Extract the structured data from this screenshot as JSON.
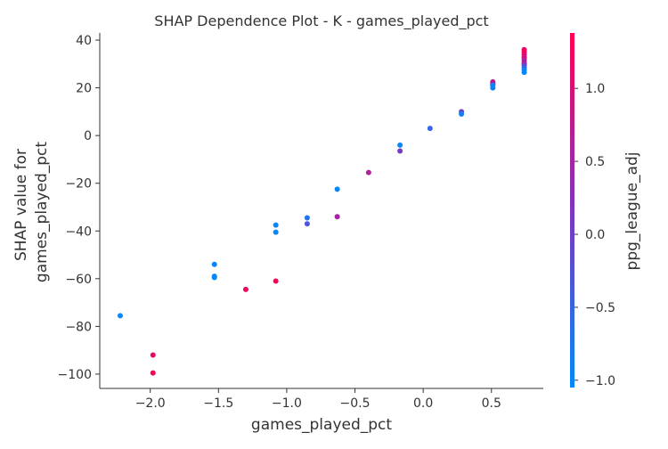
{
  "chart_data": {
    "type": "scatter",
    "title": "SHAP Dependence Plot - K - games_played_pct",
    "xlabel": "games_played_pct",
    "ylabel_line1": "SHAP value for",
    "ylabel_line2": "games_played_pct",
    "xlim": [
      -2.37,
      0.88
    ],
    "ylim": [
      -106,
      43
    ],
    "xticks": [
      -2.0,
      -1.5,
      -1.0,
      -0.5,
      0.0,
      0.5
    ],
    "xtick_labels": [
      "−2.0",
      "−1.5",
      "−1.0",
      "−0.5",
      "0.0",
      "0.5"
    ],
    "yticks": [
      -100,
      -80,
      -60,
      -40,
      -20,
      0,
      20,
      40
    ],
    "ytick_labels": [
      "−100",
      "−80",
      "−60",
      "−40",
      "−20",
      "0",
      "20",
      "40"
    ],
    "grid": false,
    "colorbar": {
      "label": "ppg_league_adj",
      "range": [
        -1.05,
        1.38
      ],
      "ticks": [
        -1.0,
        -0.5,
        0.0,
        0.5,
        1.0
      ],
      "tick_labels": [
        "−1.0",
        "−0.5",
        "0.0",
        "0.5",
        "1.0"
      ],
      "low_color": "#008afb",
      "mid_color": "#7e35c1",
      "high_color": "#ff0052"
    },
    "points": [
      {
        "x": -2.22,
        "y": -75.5,
        "c": -1.0
      },
      {
        "x": -1.98,
        "y": -92.0,
        "c": 1.2
      },
      {
        "x": -1.98,
        "y": -99.5,
        "c": 1.3
      },
      {
        "x": -1.53,
        "y": -54.0,
        "c": -1.0
      },
      {
        "x": -1.53,
        "y": -59.0,
        "c": -0.95
      },
      {
        "x": -1.53,
        "y": -59.5,
        "c": -1.0
      },
      {
        "x": -1.3,
        "y": -64.5,
        "c": 1.2
      },
      {
        "x": -1.08,
        "y": -61.0,
        "c": 1.3
      },
      {
        "x": -1.08,
        "y": -37.5,
        "c": -1.0
      },
      {
        "x": -1.08,
        "y": -40.5,
        "c": -1.0
      },
      {
        "x": -0.85,
        "y": -34.5,
        "c": -0.75
      },
      {
        "x": -0.85,
        "y": -37.0,
        "c": -0.3
      },
      {
        "x": -0.63,
        "y": -34.0,
        "c": 0.5
      },
      {
        "x": -0.63,
        "y": -22.5,
        "c": -1.0
      },
      {
        "x": -0.4,
        "y": -15.5,
        "c": 0.6
      },
      {
        "x": -0.17,
        "y": -4.0,
        "c": -1.0
      },
      {
        "x": -0.17,
        "y": -6.5,
        "c": 0.1
      },
      {
        "x": 0.05,
        "y": 3.0,
        "c": -0.55
      },
      {
        "x": 0.28,
        "y": 10.0,
        "c": 0.0
      },
      {
        "x": 0.28,
        "y": 9.0,
        "c": -0.9
      },
      {
        "x": 0.51,
        "y": 22.5,
        "c": 0.7
      },
      {
        "x": 0.51,
        "y": 22.0,
        "c": 0.9
      },
      {
        "x": 0.51,
        "y": 21.5,
        "c": 0.4
      },
      {
        "x": 0.51,
        "y": 20.0,
        "c": -0.9
      },
      {
        "x": 0.51,
        "y": 21.0,
        "c": -1.0
      },
      {
        "x": 0.74,
        "y": 36.0,
        "c": 1.2
      },
      {
        "x": 0.74,
        "y": 35.0,
        "c": 1.3
      },
      {
        "x": 0.74,
        "y": 34.0,
        "c": 1.1
      },
      {
        "x": 0.74,
        "y": 33.0,
        "c": 0.8
      },
      {
        "x": 0.74,
        "y": 32.5,
        "c": 1.0
      },
      {
        "x": 0.74,
        "y": 31.5,
        "c": 0.6
      },
      {
        "x": 0.74,
        "y": 30.5,
        "c": 0.3
      },
      {
        "x": 0.74,
        "y": 30.0,
        "c": 0.9
      },
      {
        "x": 0.74,
        "y": 29.5,
        "c": 0.0
      },
      {
        "x": 0.74,
        "y": 28.5,
        "c": -0.5
      },
      {
        "x": 0.74,
        "y": 27.5,
        "c": -0.9
      },
      {
        "x": 0.74,
        "y": 26.5,
        "c": -1.0
      }
    ]
  }
}
